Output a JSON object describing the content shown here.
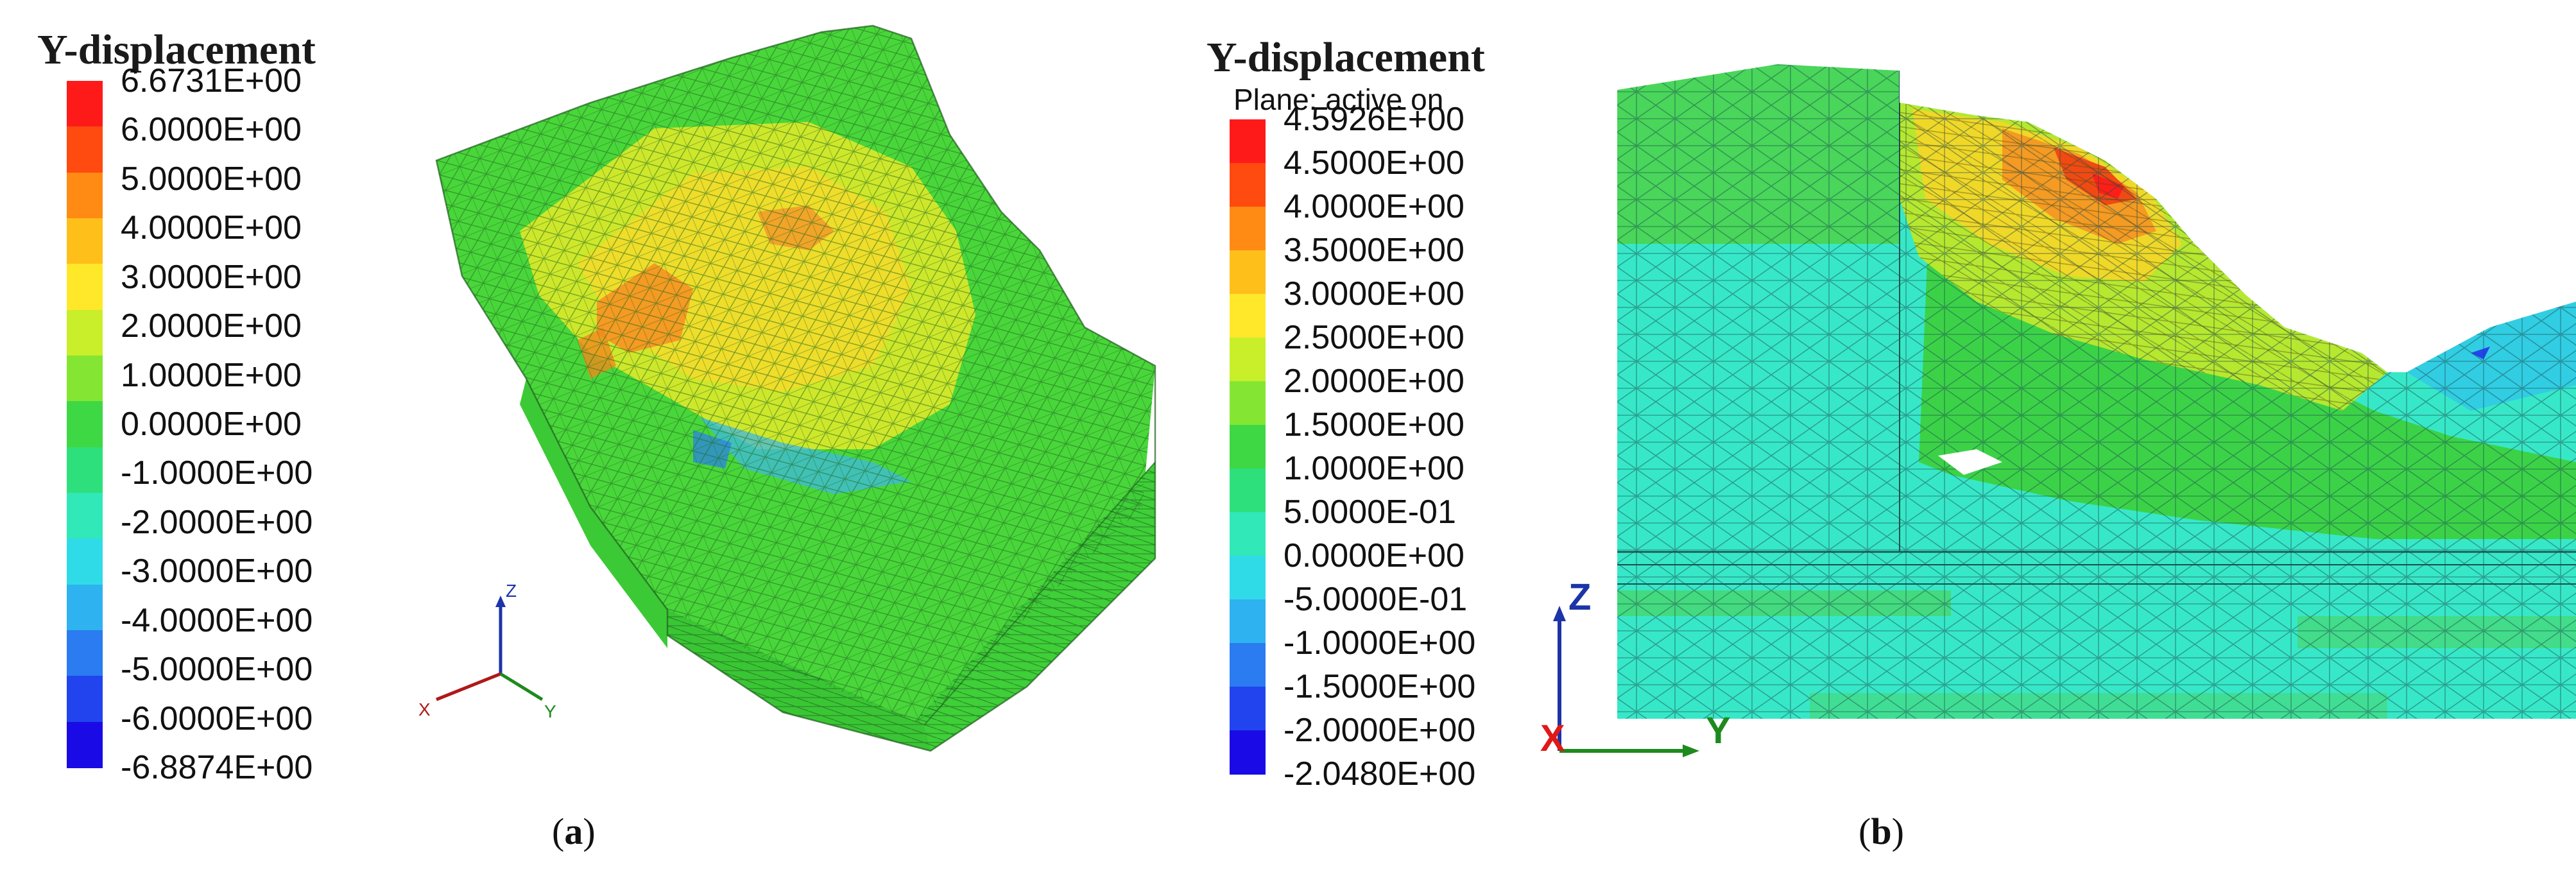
{
  "panels": [
    {
      "id": "a",
      "legend": {
        "title": "Y-displacement",
        "subtitle": "",
        "colors": [
          "#ff1a1a",
          "#ff4a10",
          "#ff8a14",
          "#ffbf1a",
          "#ffe82a",
          "#c8ef2a",
          "#84e632",
          "#3ed844",
          "#2ee07c",
          "#30e8b8",
          "#30dbe8",
          "#2eb2f0",
          "#2a7cf0",
          "#2244ee",
          "#1a0ae6"
        ],
        "labels": [
          "6.6731E+00",
          "6.0000E+00",
          "5.0000E+00",
          "4.0000E+00",
          "3.0000E+00",
          "2.0000E+00",
          "1.0000E+00",
          "0.0000E+00",
          "-1.0000E+00",
          "-2.0000E+00",
          "-3.0000E+00",
          "-4.0000E+00",
          "-5.0000E+00",
          "-6.0000E+00",
          "-6.8874E+00"
        ]
      },
      "axes": {
        "x": "X",
        "y": "Y",
        "z": "Z"
      },
      "caption": {
        "open": "(",
        "letter": "a",
        "close": ")"
      }
    },
    {
      "id": "b",
      "legend": {
        "title": "Y-displacement",
        "subtitle": "Plane: active on",
        "colors": [
          "#ff1a1a",
          "#ff4a10",
          "#ff8a14",
          "#ffbf1a",
          "#ffe82a",
          "#c8ef2a",
          "#84e632",
          "#3ed844",
          "#2ee07c",
          "#30e8b8",
          "#30dbe8",
          "#2eb2f0",
          "#2a7cf0",
          "#2244ee",
          "#1a0ae6"
        ],
        "labels": [
          "4.5926E+00",
          "4.5000E+00",
          "4.0000E+00",
          "3.5000E+00",
          "3.0000E+00",
          "2.5000E+00",
          "2.0000E+00",
          "1.5000E+00",
          "1.0000E+00",
          "5.0000E-01",
          "0.0000E+00",
          "-5.0000E-01",
          "-1.0000E+00",
          "-1.5000E+00",
          "-2.0000E+00",
          "-2.0480E+00"
        ]
      },
      "axes": {
        "x": "X",
        "y": "Y",
        "z": "Z"
      },
      "caption": {
        "open": "(",
        "letter": "b",
        "close": ")"
      }
    }
  ]
}
